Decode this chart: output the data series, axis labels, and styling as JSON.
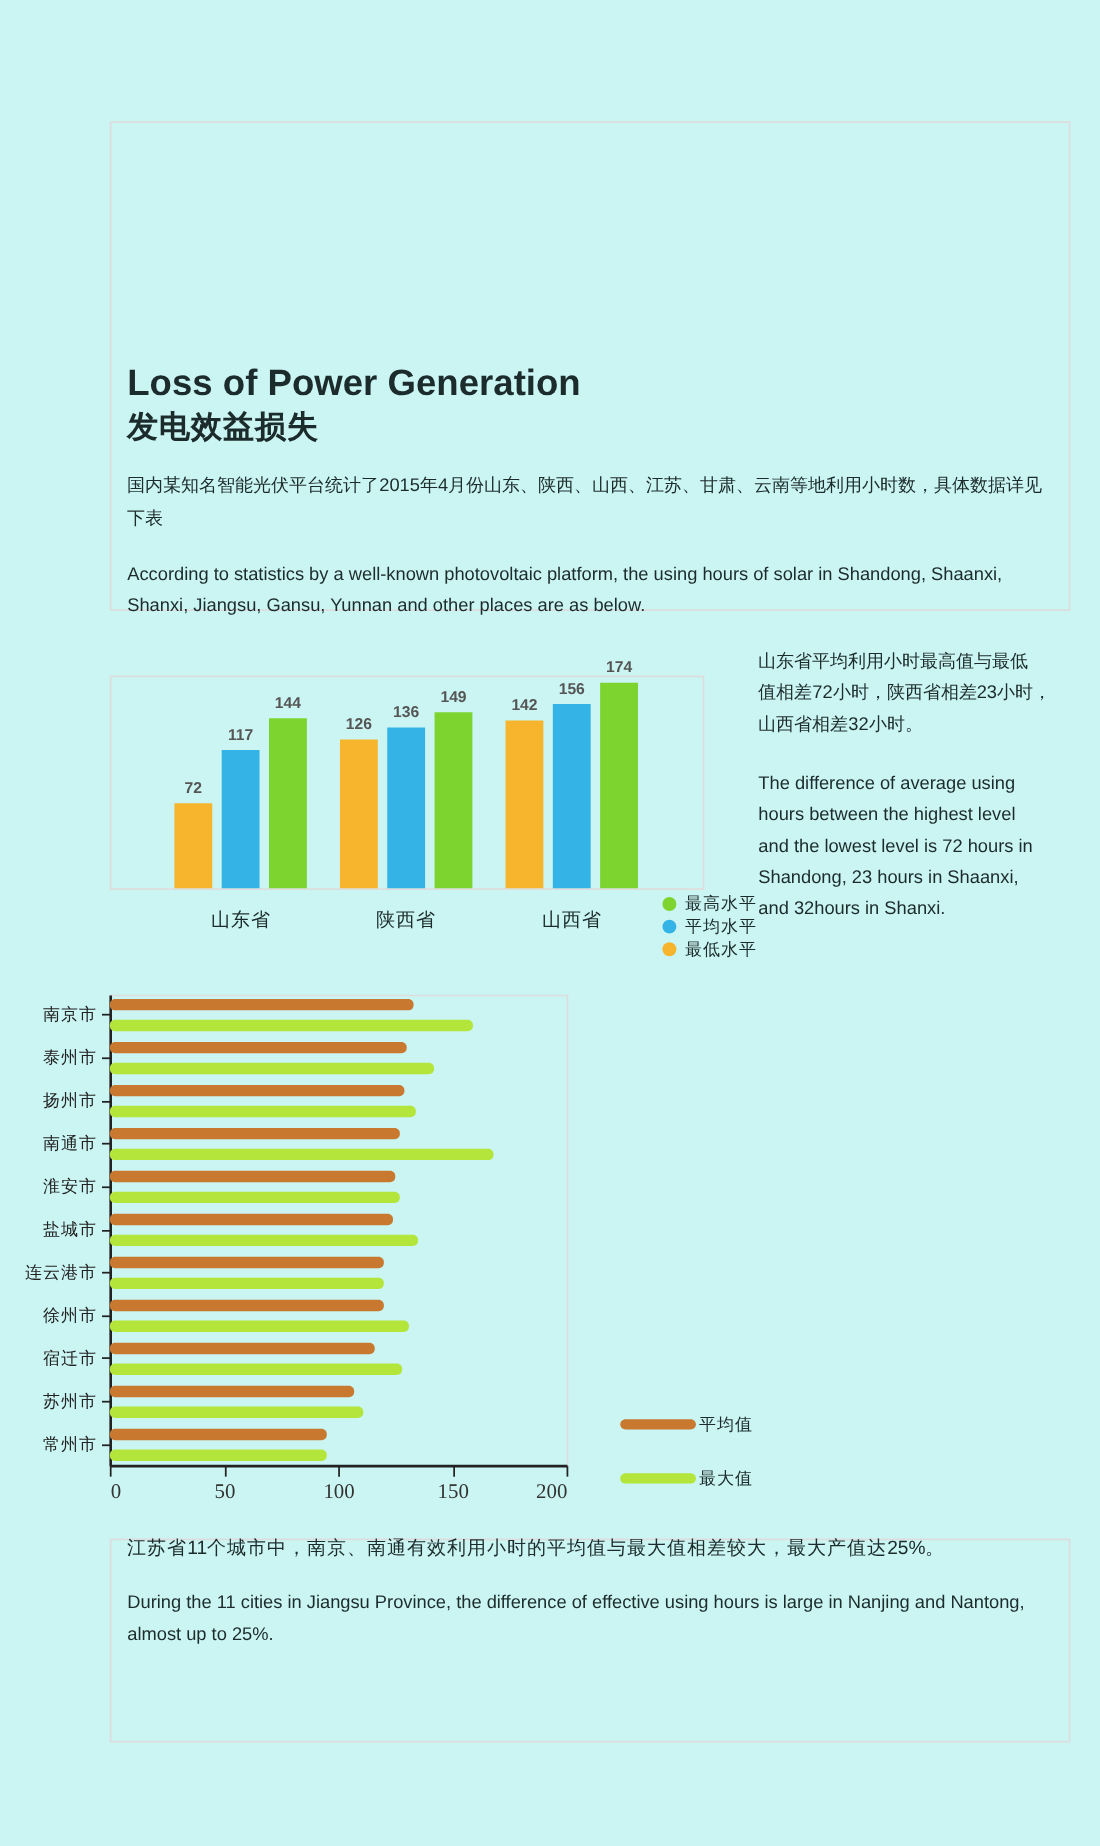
{
  "chart_data": [
    {
      "type": "bar",
      "title": "Loss of Power Generation",
      "subtitle": "发电效益损失",
      "annotations": [
        "国内某知名智能光伏平台统计了2015年4月份山东、陕西、山西、江苏、甘肃、云南等地利用小时数，具体数据详见下表",
        "According to statistics by a well-known photovoltaic platform, the using hours of solar in Shandong, Shaanxi, Shanxi, Jiangsu, Gansu, Yunnan and other places are as below.",
        "山东省平均利用小时最高值与最低值相差72小时，陕西省相差23小时，山西省相差32小时。",
        "The difference of average using hours between the highest level and the lowest level is 72 hours in Shandong, 23 hours in Shaanxi, and 32hours in Shanxi."
      ],
      "categories": [
        "山东省",
        "陕西省",
        "山西省"
      ],
      "series": [
        {
          "name": "最低水平",
          "color": "#f6b52c",
          "values": [
            72,
            126,
            142
          ]
        },
        {
          "name": "平均水平",
          "color": "#34b4e6",
          "values": [
            117,
            136,
            156
          ]
        },
        {
          "name": "最高水平",
          "color": "#7dd42e",
          "values": [
            144,
            149,
            174
          ]
        }
      ],
      "data_labels": true,
      "tick_labels": "x",
      "legend": "bottom right"
    },
    {
      "type": "bar",
      "orientation": "horizontal",
      "categories": [
        "南京市",
        "泰州市",
        "扬州市",
        "南通市",
        "淮安市",
        "盐城市",
        "连云港市",
        "徐州市",
        "宿迁市",
        "苏州市",
        "常州市"
      ],
      "series": [
        {
          "name": "平均值",
          "color": "#c8782f",
          "values": [
            133,
            130,
            129,
            127,
            125,
            124,
            120,
            120,
            116,
            107,
            95
          ]
        },
        {
          "name": "最大值",
          "color": "#b3e53b",
          "values": [
            159,
            142,
            134,
            168,
            127,
            135,
            120,
            131,
            128,
            111,
            95
          ]
        }
      ],
      "xlim": [
        0,
        200
      ],
      "xticks": [
        0,
        50,
        100,
        150,
        200
      ],
      "legend": "bottom right",
      "annotations": [
        "江苏省11个城市中，南京、南通有效利用小时的平均值与最大值相差较大，最大产值达25%。",
        "During the 11 cities in Jiangsu Province, the difference of effective using hours is large in Nanjing and Nantong, almost up to 25%."
      ]
    }
  ]
}
